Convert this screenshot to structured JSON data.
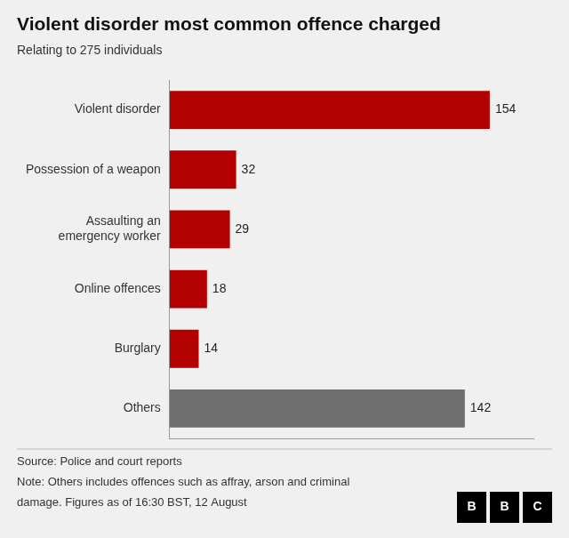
{
  "chart_data": {
    "type": "bar",
    "orientation": "horizontal",
    "title": "Violent disorder most common offence charged",
    "subtitle": "Relating to 275 individuals",
    "categories": [
      "Violent disorder",
      "Possession of a weapon",
      "Assaulting an\nemergency worker",
      "Online offences",
      "Burglary",
      "Others"
    ],
    "values": [
      154,
      32,
      29,
      18,
      14,
      142
    ],
    "colors": [
      "#b30000",
      "#b30000",
      "#b30000",
      "#b30000",
      "#b30000",
      "#6e6e6e"
    ],
    "xlim": [
      0,
      175
    ],
    "grid": false,
    "data_labels": true,
    "tick_labels": "y",
    "footnotes": [
      "Source: Police and court reports",
      "Note: Others includes offences such as affray, arson and criminal",
      "damage. Figures as of 16:30 BST, 12 August"
    ],
    "logo": [
      "B",
      "B",
      "C"
    ]
  }
}
